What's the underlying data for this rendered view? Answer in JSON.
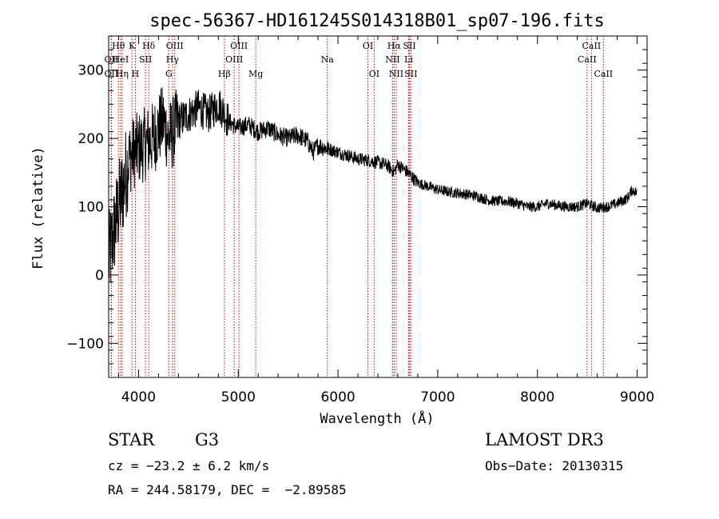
{
  "chart_data": {
    "type": "line",
    "title": "spec-56367-HD161245S014318B01_sp07-196.fits",
    "xlabel": "Wavelength (Å)",
    "ylabel": "Flux (relative)",
    "xlim": [
      3700,
      9100
    ],
    "ylim": [
      -150,
      350
    ],
    "xticks": [
      4000,
      5000,
      6000,
      7000,
      8000,
      9000
    ],
    "yticks": [
      -100,
      0,
      100,
      200,
      300
    ],
    "xtick_labels": [
      "4000",
      "5000",
      "6000",
      "7000",
      "8000",
      "9000"
    ],
    "ytick_labels": [
      "−100",
      "0",
      "100",
      "200",
      "300"
    ],
    "series": [
      {
        "name": "flux",
        "color": "#000000",
        "x": [
          3700,
          3750,
          3800,
          3850,
          3900,
          3950,
          4000,
          4050,
          4100,
          4150,
          4200,
          4250,
          4300,
          4350,
          4400,
          4500,
          4600,
          4700,
          4800,
          4850,
          4900,
          5000,
          5100,
          5200,
          5300,
          5400,
          5500,
          5600,
          5700,
          5750,
          5800,
          5900,
          6000,
          6100,
          6200,
          6300,
          6400,
          6500,
          6563,
          6600,
          6700,
          6800,
          6900,
          7000,
          7100,
          7200,
          7300,
          7400,
          7500,
          7600,
          7700,
          7800,
          7900,
          8000,
          8100,
          8200,
          8300,
          8400,
          8500,
          8600,
          8700,
          8800,
          8900,
          8950,
          9000
        ],
        "y": [
          20,
          60,
          100,
          130,
          170,
          180,
          185,
          190,
          195,
          200,
          215,
          225,
          200,
          210,
          225,
          235,
          245,
          235,
          250,
          240,
          225,
          215,
          220,
          210,
          215,
          205,
          200,
          205,
          195,
          180,
          190,
          185,
          180,
          175,
          170,
          168,
          165,
          160,
          150,
          162,
          150,
          135,
          130,
          125,
          122,
          120,
          118,
          115,
          110,
          108,
          108,
          105,
          100,
          100,
          105,
          102,
          100,
          100,
          105,
          98,
          100,
          105,
          112,
          125,
          120
        ]
      }
    ],
    "spectral_lines": [
      {
        "name": "OII",
        "wavelength": 3727,
        "row": 2
      },
      {
        "name": "Hθ",
        "wavelength": 3798,
        "row": 0
      },
      {
        "name": "OII",
        "wavelength": 3727,
        "row": 1
      },
      {
        "name": "HeI",
        "wavelength": 3820,
        "row": 1
      },
      {
        "name": "Hη",
        "wavelength": 3835,
        "row": 2
      },
      {
        "name": "K",
        "wavelength": 3934,
        "row": 0
      },
      {
        "name": "H",
        "wavelength": 3968,
        "row": 2
      },
      {
        "name": "SII",
        "wavelength": 4069,
        "row": 1
      },
      {
        "name": "Hδ",
        "wavelength": 4102,
        "row": 0
      },
      {
        "name": "OIII",
        "wavelength": 4363,
        "row": 0
      },
      {
        "name": "Hγ",
        "wavelength": 4340,
        "row": 1
      },
      {
        "name": "G",
        "wavelength": 4304,
        "row": 2
      },
      {
        "name": "Hβ",
        "wavelength": 4861,
        "row": 2
      },
      {
        "name": "OIII",
        "wavelength": 5007,
        "row": 0
      },
      {
        "name": "OIII",
        "wavelength": 4959,
        "row": 1
      },
      {
        "name": "Mg",
        "wavelength": 5175,
        "row": 2
      },
      {
        "name": "Na",
        "wavelength": 5893,
        "row": 1
      },
      {
        "name": "OI",
        "wavelength": 6300,
        "row": 0
      },
      {
        "name": "OI",
        "wavelength": 6363,
        "row": 2
      },
      {
        "name": "Hα",
        "wavelength": 6563,
        "row": 0
      },
      {
        "name": "NII",
        "wavelength": 6548,
        "row": 1
      },
      {
        "name": "NII",
        "wavelength": 6584,
        "row": 2
      },
      {
        "name": "SII",
        "wavelength": 6717,
        "row": 0
      },
      {
        "name": "Li",
        "wavelength": 6708,
        "row": 1
      },
      {
        "name": "SII",
        "wavelength": 6731,
        "row": 2
      },
      {
        "name": "CaII",
        "wavelength": 8542,
        "row": 0
      },
      {
        "name": "CaII",
        "wavelength": 8498,
        "row": 1
      },
      {
        "name": "CaII",
        "wavelength": 8662,
        "row": 2
      }
    ],
    "line_color": "#cc0000"
  },
  "info": {
    "object_type": "STAR",
    "subclass": "G3",
    "survey": "LAMOST DR3",
    "cz": "cz = −23.2 ± 6.2 km/s",
    "obs_date": "Obs−Date: 20130315",
    "radec": "RA = 244.58179, DEC =  −2.89585"
  }
}
